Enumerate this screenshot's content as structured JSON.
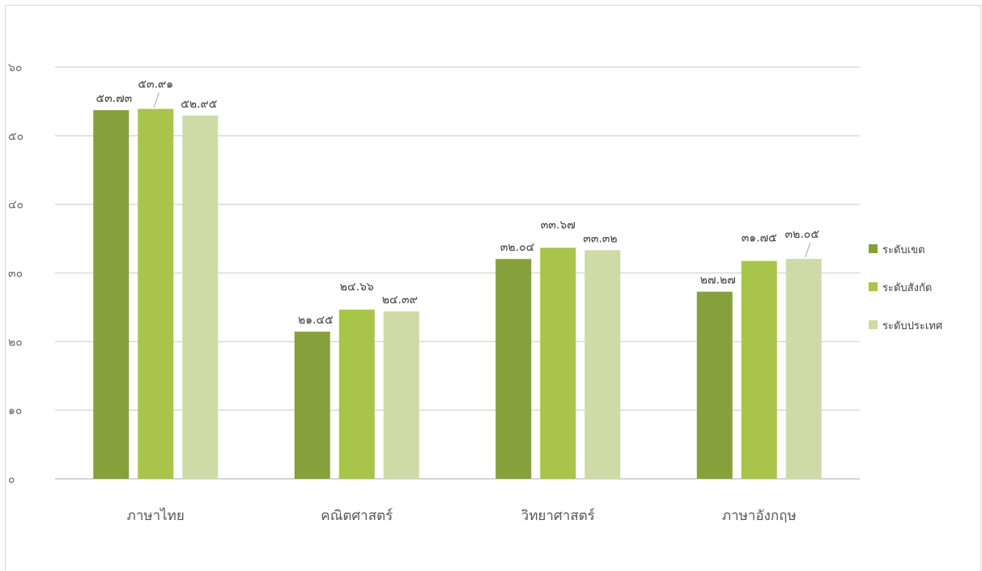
{
  "chart_data": {
    "type": "bar",
    "categories": [
      "ภาษาไทย",
      "คณิตศาสตร์",
      "วิทยาศาสตร์",
      "ภาษาอังกฤษ"
    ],
    "series": [
      {
        "name": "ระดับเขต",
        "color": "#86a03c",
        "values": [
          53.73,
          21.45,
          32.04,
          27.27
        ],
        "labels": [
          "๕๓.๗๓",
          "๒๑.๔๕",
          "๓๒.๐๔",
          "๒๗.๒๗"
        ]
      },
      {
        "name": "ระดับสังกัด",
        "color": "#a9c44a",
        "values": [
          53.91,
          24.66,
          33.67,
          31.75
        ],
        "labels": [
          "๕๓.๙๑",
          "๒๔.๖๖",
          "๓๓.๖๗",
          "๓๑.๗๕"
        ]
      },
      {
        "name": "ระดับประเทศ",
        "color": "#cedba7",
        "values": [
          52.95,
          24.39,
          33.32,
          32.05
        ],
        "labels": [
          "๕๒.๙๕",
          "๒๔.๓๙",
          "๓๓.๓๒",
          "๓๒.๐๕"
        ]
      }
    ],
    "ylim": [
      0,
      60
    ],
    "yticks": [
      0,
      10,
      20,
      30,
      40,
      50,
      60
    ],
    "ytick_labels": [
      "๐",
      "๑๐",
      "๒๐",
      "๓๐",
      "๔๐",
      "๕๐",
      "๖๐"
    ],
    "grid": true,
    "legend_position": "right",
    "title": "",
    "xlabel": "",
    "ylabel": ""
  }
}
